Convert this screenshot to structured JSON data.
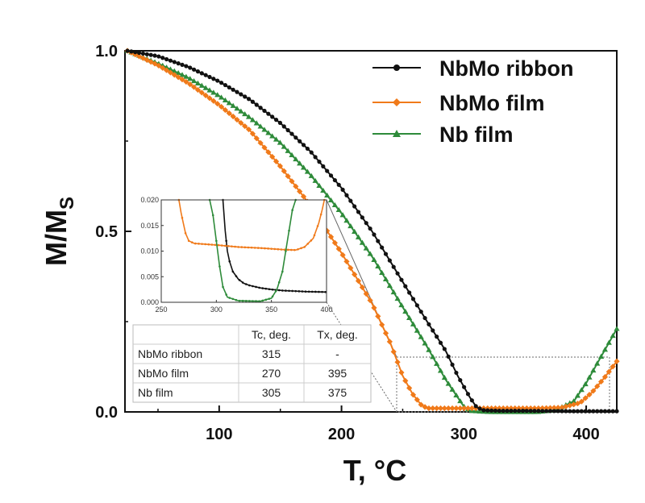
{
  "chart_data": {
    "type": "line",
    "xlabel": "T, °C",
    "ylabel_main": "M/M",
    "ylabel_sub": "S",
    "xlim": [
      23,
      425
    ],
    "ylim": [
      0,
      1.0
    ],
    "xticks": [
      {
        "v": 100,
        "label": "100"
      },
      {
        "v": 200,
        "label": "200"
      },
      {
        "v": 300,
        "label": "300"
      },
      {
        "v": 400,
        "label": "400"
      }
    ],
    "yticks": [
      {
        "v": 0,
        "label": "0.0"
      },
      {
        "v": 0.5,
        "label": "0.5"
      },
      {
        "v": 1.0,
        "label": "1.0"
      }
    ],
    "colors": {
      "ribbon": "#111111",
      "nbmo_film": "#f07a1a",
      "nb_film": "#2e8b3a"
    },
    "legend": {
      "position": "top-right",
      "entries": [
        "NbMo ribbon",
        "NbMo film",
        "Nb film"
      ]
    },
    "series": [
      {
        "name": "NbMo ribbon",
        "marker": "circle",
        "x": [
          25,
          50,
          75,
          100,
          125,
          150,
          175,
          200,
          225,
          250,
          270,
          285,
          295,
          305,
          310,
          315,
          320,
          330,
          350,
          370,
          390,
          410,
          425
        ],
        "y": [
          1.0,
          0.985,
          0.955,
          0.915,
          0.865,
          0.8,
          0.72,
          0.62,
          0.5,
          0.36,
          0.25,
          0.17,
          0.1,
          0.04,
          0.015,
          0.005,
          0.004,
          0.003,
          0.003,
          0.0025,
          0.002,
          0.002,
          0.002
        ]
      },
      {
        "name": "NbMo film",
        "marker": "diamond",
        "x": [
          25,
          50,
          75,
          100,
          125,
          150,
          175,
          200,
          225,
          240,
          250,
          258,
          265,
          270,
          280,
          300,
          330,
          360,
          380,
          395,
          405,
          415,
          425
        ],
        "y": [
          1.0,
          0.96,
          0.91,
          0.85,
          0.78,
          0.68,
          0.57,
          0.44,
          0.3,
          0.19,
          0.1,
          0.05,
          0.02,
          0.01,
          0.01,
          0.01,
          0.01,
          0.01,
          0.012,
          0.025,
          0.055,
          0.095,
          0.14
        ]
      },
      {
        "name": "Nb film",
        "marker": "triangle",
        "x": [
          25,
          50,
          75,
          100,
          125,
          150,
          175,
          200,
          225,
          250,
          270,
          285,
          295,
          300,
          305,
          320,
          340,
          360,
          375,
          390,
          400,
          410,
          425
        ],
        "y": [
          1.0,
          0.965,
          0.925,
          0.875,
          0.815,
          0.745,
          0.655,
          0.55,
          0.43,
          0.29,
          0.18,
          0.09,
          0.04,
          0.015,
          0.003,
          0.0,
          0.0,
          0.0,
          0.005,
          0.03,
          0.08,
          0.14,
          0.23
        ]
      }
    ],
    "inset": {
      "xlim": [
        250,
        400
      ],
      "ylim": [
        0,
        0.02
      ],
      "xticks": [
        {
          "v": 250,
          "label": "250"
        },
        {
          "v": 300,
          "label": "300"
        },
        {
          "v": 350,
          "label": "350"
        },
        {
          "v": 400,
          "label": "400"
        }
      ],
      "yticks": [
        {
          "v": 0,
          "label": "0.000"
        },
        {
          "v": 0.005,
          "label": "0.005"
        },
        {
          "v": 0.01,
          "label": "0.010"
        },
        {
          "v": 0.015,
          "label": "0.015"
        },
        {
          "v": 0.02,
          "label": "0.020"
        }
      ],
      "series": [
        {
          "name": "NbMo ribbon",
          "x": [
            306,
            308,
            310,
            312,
            315,
            320,
            325,
            330,
            340,
            350,
            360,
            370,
            380,
            400
          ],
          "y": [
            0.02,
            0.014,
            0.01,
            0.008,
            0.006,
            0.0045,
            0.0037,
            0.0033,
            0.0028,
            0.0025,
            0.0023,
            0.0022,
            0.0021,
            0.002
          ]
        },
        {
          "name": "NbMo film",
          "x": [
            266,
            268,
            270,
            272,
            275,
            280,
            300,
            320,
            340,
            360,
            372,
            380,
            388,
            393,
            396,
            398
          ],
          "y": [
            0.02,
            0.0175,
            0.0155,
            0.0135,
            0.012,
            0.0115,
            0.0112,
            0.0108,
            0.0106,
            0.0103,
            0.0102,
            0.0108,
            0.0125,
            0.0155,
            0.018,
            0.02
          ]
        },
        {
          "name": "Nb film",
          "x": [
            294,
            297,
            300,
            303,
            306,
            310,
            320,
            340,
            350,
            355,
            360,
            363,
            366,
            369,
            372
          ],
          "y": [
            0.02,
            0.017,
            0.012,
            0.007,
            0.003,
            0.001,
            0.0003,
            0.0002,
            0.0008,
            0.0025,
            0.006,
            0.01,
            0.014,
            0.018,
            0.02
          ]
        }
      ]
    },
    "table": {
      "headers": [
        "",
        "Tc, deg.",
        "Tx, deg."
      ],
      "rows": [
        [
          "NbMo ribbon",
          "315",
          "-"
        ],
        [
          "NbMo film",
          "270",
          "395"
        ],
        [
          "Nb film",
          "305",
          "375"
        ]
      ]
    }
  }
}
